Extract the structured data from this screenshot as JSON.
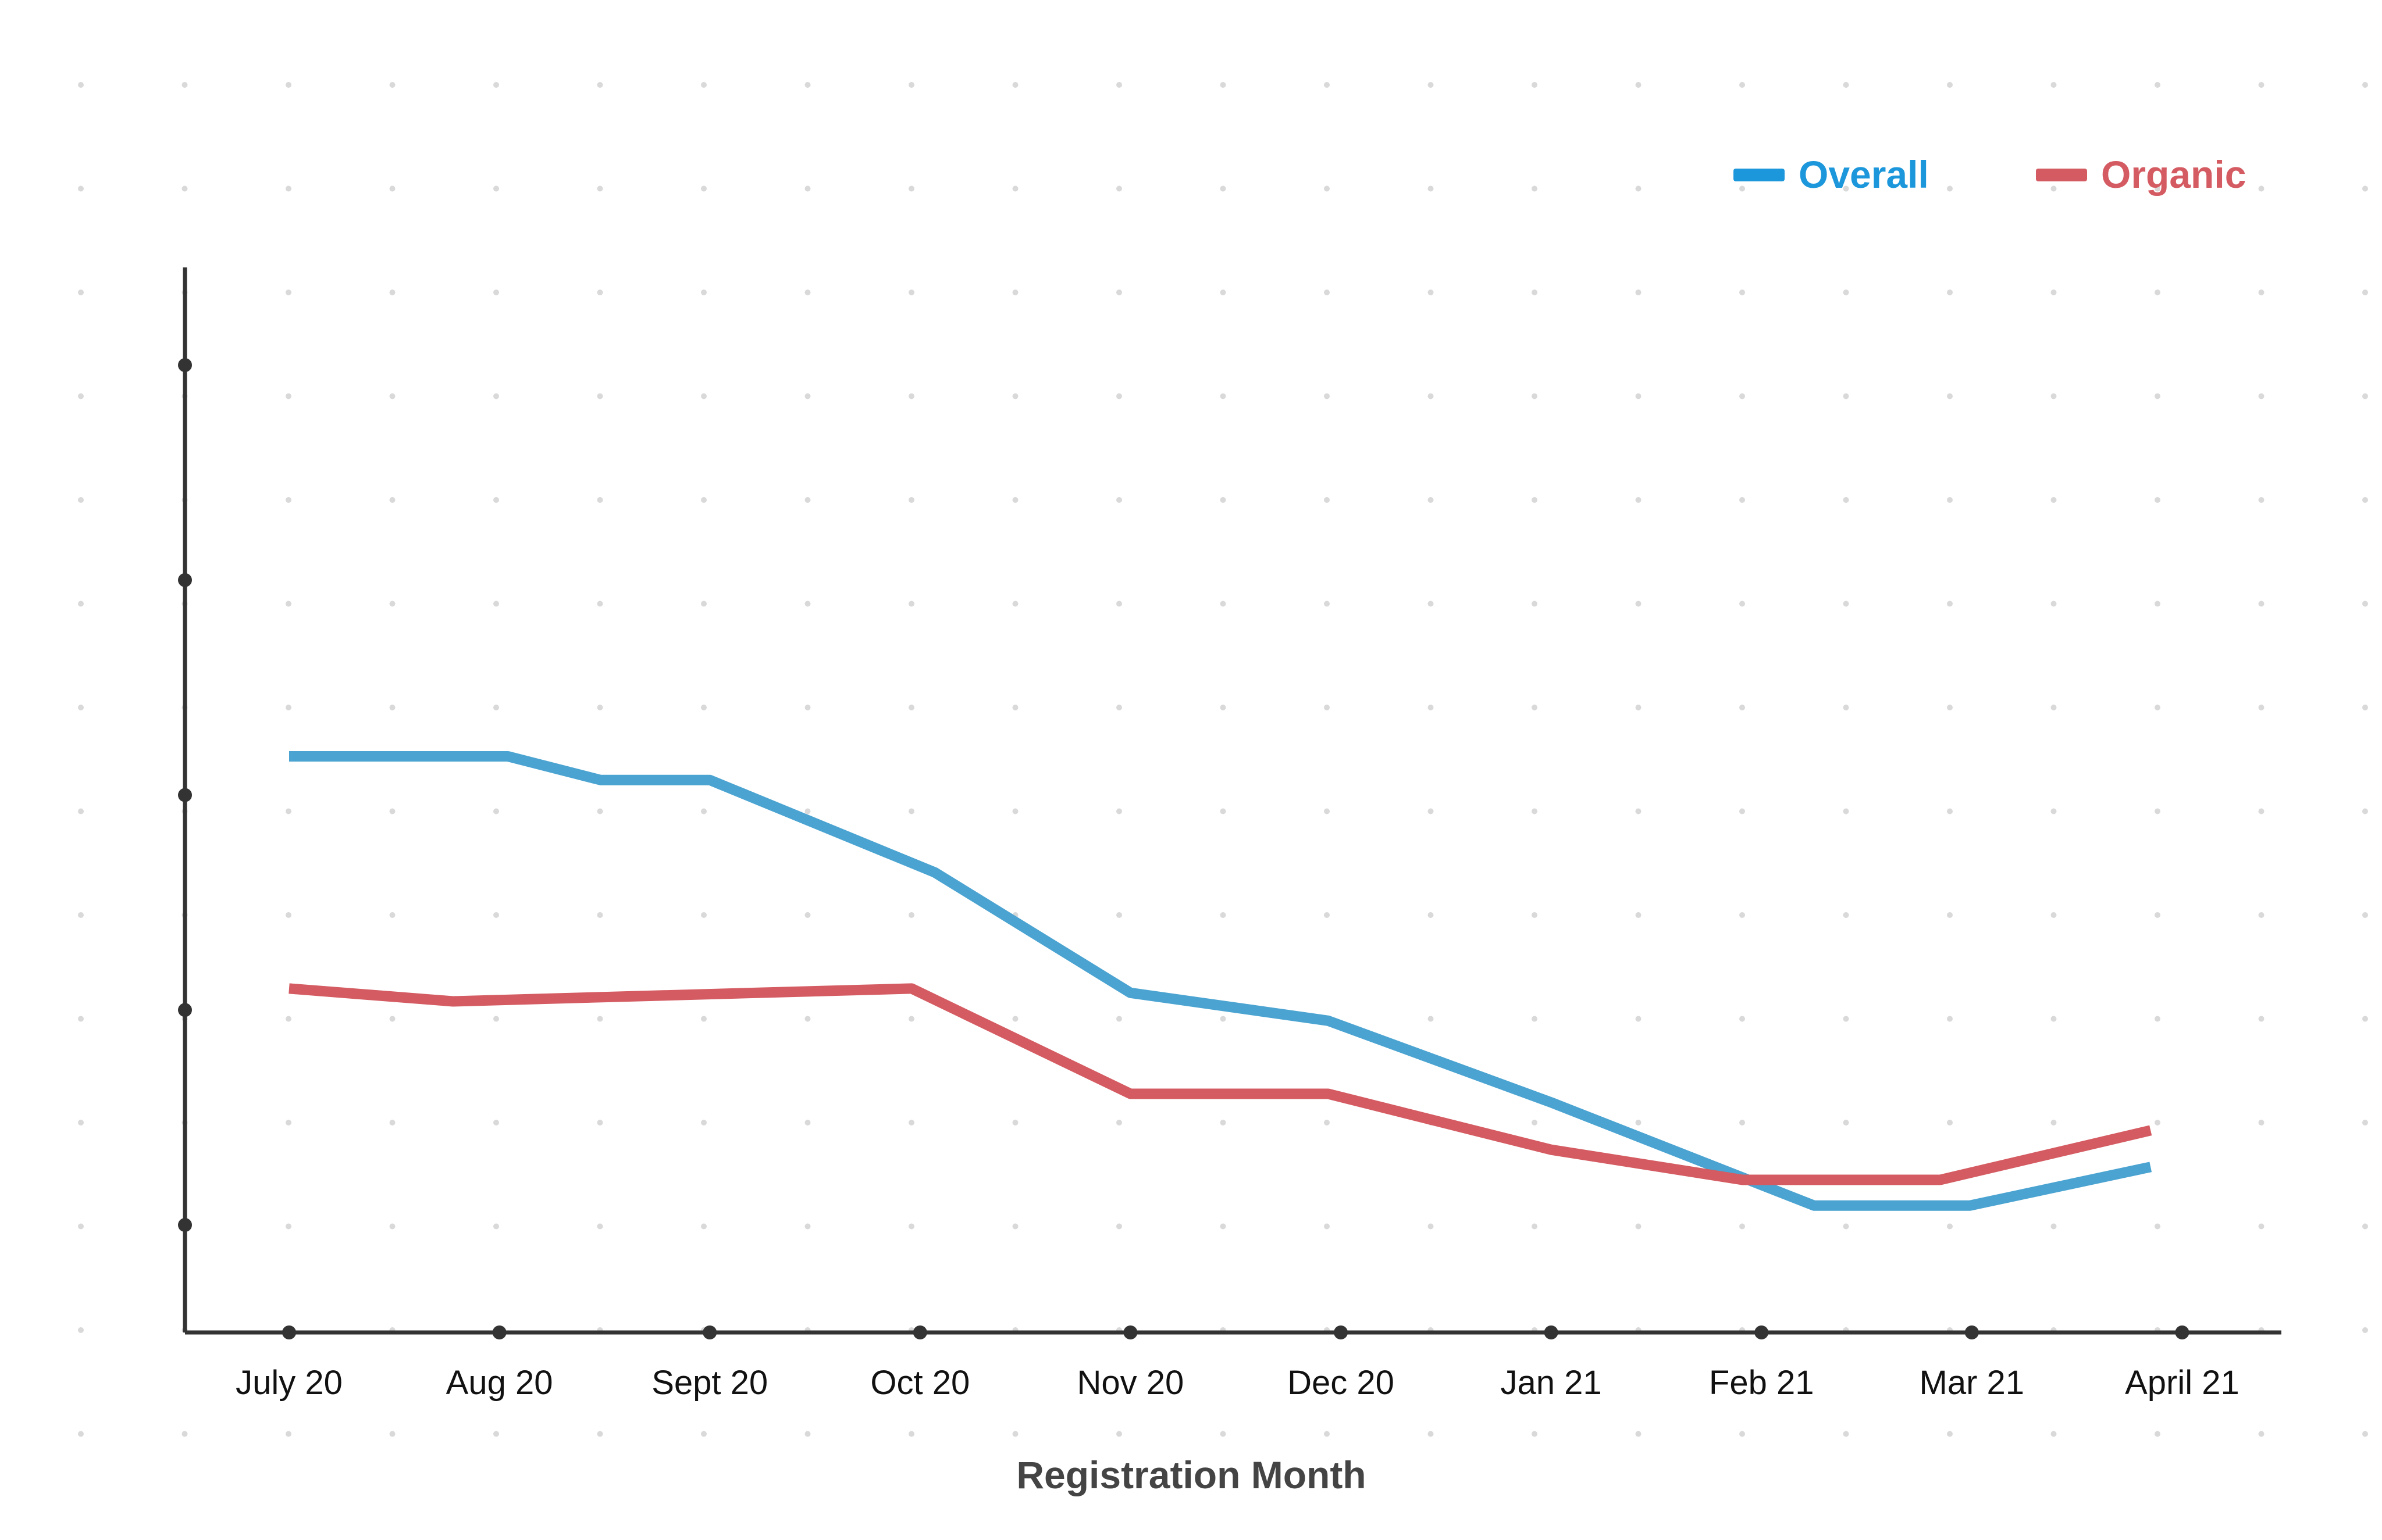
{
  "chart_data": {
    "type": "line",
    "title": "",
    "xlabel": "Registration Month",
    "ylabel": "",
    "categories": [
      "July 20",
      "Aug 20",
      "Sept 20",
      "Oct 20",
      "Nov 20",
      "Dec 20",
      "Jan 21",
      "Feb 21",
      "Mar 21",
      "April 21"
    ],
    "ylim": [
      0,
      4.5
    ],
    "yticks": [
      0.5,
      1.5,
      2.5,
      3.5,
      4.5
    ],
    "grid": false,
    "dot_grid": true,
    "legend_position": "top-right",
    "series": [
      {
        "name": "Overall",
        "color": "#4AA3D1",
        "legend_color": "#1C97DB",
        "points": [
          [
            0,
            2.68
          ],
          [
            1.04,
            2.68
          ],
          [
            1.48,
            2.57
          ],
          [
            2.0,
            2.57
          ],
          [
            3.07,
            2.14
          ],
          [
            4.0,
            1.58
          ],
          [
            4.94,
            1.45
          ],
          [
            6.0,
            1.07
          ],
          [
            7.25,
            0.59
          ],
          [
            7.99,
            0.59
          ],
          [
            8.85,
            0.77
          ]
        ]
      },
      {
        "name": "Organic",
        "color": "#D45B61",
        "legend_color": "#D45B61",
        "points": [
          [
            0,
            1.6
          ],
          [
            0.78,
            1.54
          ],
          [
            1.5,
            1.56
          ],
          [
            2.96,
            1.6
          ],
          [
            4.0,
            1.11
          ],
          [
            4.94,
            1.11
          ],
          [
            6.0,
            0.85
          ],
          [
            6.91,
            0.71
          ],
          [
            7.85,
            0.71
          ],
          [
            8.85,
            0.94
          ]
        ]
      }
    ]
  }
}
